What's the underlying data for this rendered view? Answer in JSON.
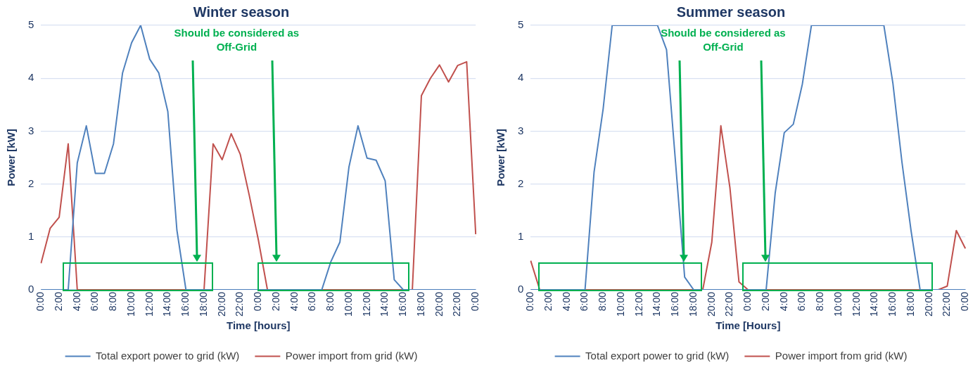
{
  "chart_data": [
    {
      "type": "line",
      "title": "Winter season",
      "xlabel": "Time [hours]",
      "ylabel": "Power [kW]",
      "categories": [
        "0:00",
        null,
        "2:00",
        null,
        "4:00",
        null,
        "6:00",
        null,
        "8:00",
        null,
        "10:00",
        null,
        "12:00",
        null,
        "14:00",
        null,
        "16:00",
        null,
        "18:00",
        null,
        "20:00",
        null,
        "22:00",
        null,
        "0:00",
        null,
        "2:00",
        null,
        "4:00",
        null,
        "6:00",
        null,
        "8:00",
        null,
        "10:00",
        null,
        "12:00",
        null,
        "14:00",
        null,
        "16:00",
        null,
        "18:00",
        null,
        "20:00",
        null,
        "22:00",
        null,
        "0:00"
      ],
      "series": [
        {
          "name": "Total export power to grid (kW)",
          "color": "#4f81bd",
          "values": [
            0,
            0,
            0,
            0,
            2.4,
            3.1,
            2.2,
            2.2,
            2.76,
            4.1,
            4.67,
            5.0,
            4.36,
            4.1,
            3.37,
            1.13,
            0,
            0,
            0,
            0,
            0,
            0,
            0,
            0,
            0,
            0,
            0,
            0,
            0,
            0,
            0,
            0,
            0.53,
            0.9,
            2.32,
            3.1,
            2.49,
            2.45,
            2.06,
            0.19,
            0,
            0,
            0,
            0,
            0,
            0,
            0,
            0,
            0
          ]
        },
        {
          "name": "Power import from grid (kW)",
          "color": "#c0504d",
          "values": [
            0.5,
            1.16,
            1.37,
            2.76,
            0,
            0,
            0,
            0,
            0,
            0,
            0,
            0,
            0,
            0,
            0,
            0,
            0,
            0,
            0,
            2.76,
            2.46,
            2.95,
            2.56,
            1.78,
            0.94,
            0,
            0,
            0,
            0,
            0,
            0,
            0,
            0,
            0,
            0,
            0,
            0,
            0,
            0,
            0,
            0,
            0,
            3.67,
            4.0,
            4.25,
            3.93,
            4.24,
            4.31,
            1.05
          ]
        }
      ],
      "ylim": [
        0,
        5
      ],
      "yticks": [
        0,
        1,
        2,
        3,
        4,
        5
      ],
      "annotations": [
        "Should be considered as Off-Grid"
      ],
      "grid": "y",
      "legend": "bottom",
      "marker": "none",
      "line_style": "solid"
    },
    {
      "type": "line",
      "title": "Summer season",
      "xlabel": "Time [Hours]",
      "ylabel": "Power [kW]",
      "categories": [
        "0:00",
        null,
        "2:00",
        null,
        "4:00",
        null,
        "6:00",
        null,
        "8:00",
        null,
        "10:00",
        null,
        "12:00",
        null,
        "14:00",
        null,
        "16:00",
        null,
        "18:00",
        null,
        "20:00",
        null,
        "22:00",
        null,
        "0:00",
        null,
        "2:00",
        null,
        "4:00",
        null,
        "6:00",
        null,
        "8:00",
        null,
        "10:00",
        null,
        "12:00",
        null,
        "14:00",
        null,
        "16:00",
        null,
        "18:00",
        null,
        "20:00",
        null,
        "22:00",
        null,
        "0:00"
      ],
      "series": [
        {
          "name": "Total export power to grid (kW)",
          "color": "#4f81bd",
          "values": [
            0,
            0,
            0,
            0,
            0,
            0,
            0,
            2.23,
            3.42,
            5,
            5,
            5,
            5,
            5,
            5,
            4.54,
            2.4,
            0.24,
            0,
            0,
            0,
            0,
            0,
            0,
            0,
            0,
            0,
            1.83,
            2.97,
            3.13,
            3.89,
            5,
            5,
            5,
            5,
            5,
            5,
            5,
            5,
            5,
            3.9,
            2.41,
            1.12,
            0,
            0,
            0,
            0,
            0,
            0
          ]
        },
        {
          "name": "Power import from grid (kW)",
          "color": "#c0504d",
          "values": [
            0.55,
            0,
            0,
            0,
            0,
            0,
            0,
            0,
            0,
            0,
            0,
            0,
            0,
            0,
            0,
            0,
            0,
            0,
            0,
            0,
            0.9,
            3.1,
            1.93,
            0.15,
            0,
            0,
            0,
            0,
            0,
            0,
            0,
            0,
            0,
            0,
            0,
            0,
            0,
            0,
            0,
            0,
            0,
            0,
            0,
            0,
            0,
            0,
            0.07,
            1.12,
            0.78
          ]
        }
      ],
      "ylim": [
        0,
        5
      ],
      "yticks": [
        0,
        1,
        2,
        3,
        4,
        5
      ],
      "annotations": [
        "Should be considered as Off-Grid"
      ],
      "grid": "y",
      "legend": "bottom",
      "marker": "none",
      "line_style": "solid"
    }
  ]
}
